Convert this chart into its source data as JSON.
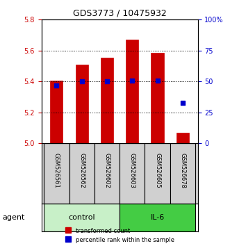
{
  "title": "GDS3773 / 10475932",
  "samples": [
    "GSM526561",
    "GSM526562",
    "GSM526602",
    "GSM526603",
    "GSM526605",
    "GSM526678"
  ],
  "bar_values": [
    5.405,
    5.51,
    5.555,
    5.67,
    5.585,
    5.07
  ],
  "percentile_values": [
    47,
    50,
    50,
    51,
    51,
    33
  ],
  "ylim_left": [
    5.0,
    5.8
  ],
  "ylim_right": [
    0,
    100
  ],
  "yticks_left": [
    5.0,
    5.2,
    5.4,
    5.6,
    5.8
  ],
  "yticks_right": [
    0,
    25,
    50,
    75,
    100
  ],
  "bar_color": "#cc0000",
  "dot_color": "#0000cc",
  "bar_width": 0.5,
  "groups": [
    {
      "label": "control",
      "indices": [
        0,
        1,
        2
      ],
      "color": "#c8f0c8"
    },
    {
      "label": "IL-6",
      "indices": [
        3,
        4,
        5
      ],
      "color": "#44cc44"
    }
  ],
  "agent_label": "agent",
  "legend_bar_label": "transformed count",
  "legend_dot_label": "percentile rank within the sample",
  "grid_color": "#000000",
  "grid_style": "dotted",
  "xlabel_color": "#cc0000",
  "ylabel_right_color": "#0000cc",
  "sample_box_color": "#d0d0d0",
  "sample_box_edge": "#000000"
}
